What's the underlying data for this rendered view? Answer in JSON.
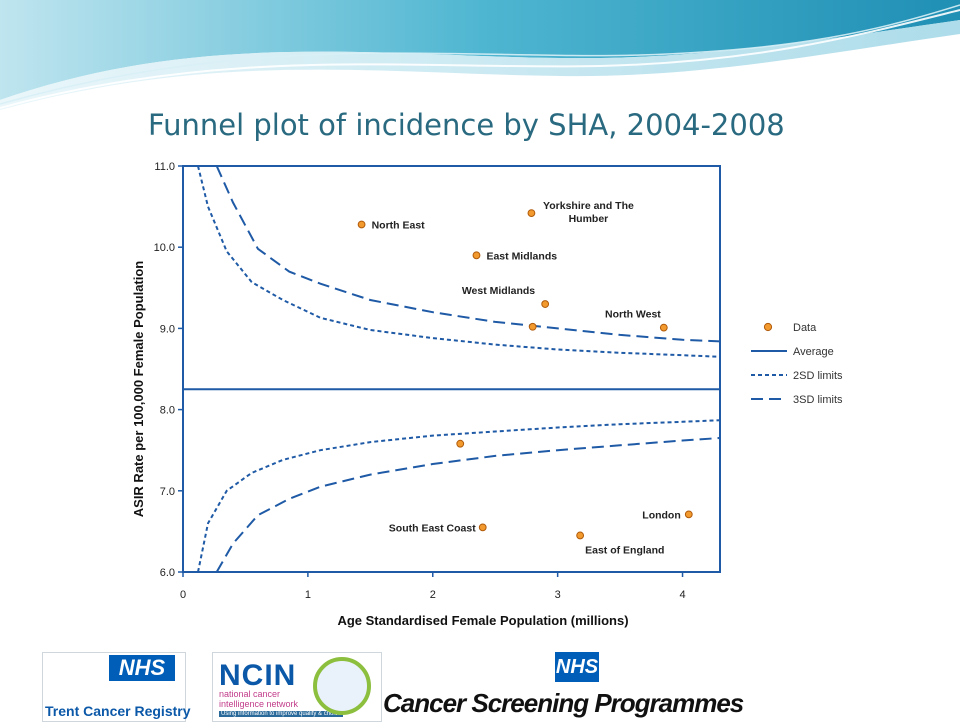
{
  "slide": {
    "title": "Funnel plot of incidence by SHA, 2004-2008"
  },
  "logos": {
    "trent_nhs": "NHS",
    "trent_text": "Trent Cancer Registry",
    "ncin_big": "NCIN",
    "ncin_sub1": "national cancer",
    "ncin_sub2": "intelligence network",
    "ncin_tagline": "Using information to improve quality & choice",
    "csp_nhs": "NHS",
    "csp_text": "Cancer Screening Programmes"
  },
  "colors": {
    "title": "#2a6a80",
    "line": "#1f5aa6",
    "marker_fill": "#f29a2e",
    "marker_edge": "#b05a0a",
    "nhs_blue": "#005eb8"
  },
  "chart_data": {
    "type": "scatter",
    "title": "",
    "xlabel": "Age Standardised Female Population (millions)",
    "ylabel": "ASIR Rate per 100,000 Female Population",
    "xlim": [
      0,
      4.3
    ],
    "ylim": [
      6.0,
      11.0
    ],
    "xticks": [
      "0",
      "1",
      "2",
      "3",
      "4"
    ],
    "yticks": [
      "6.0",
      "7.0",
      "8.0",
      "9.0",
      "10.0",
      "11.0"
    ],
    "grid": false,
    "legend_position": "right",
    "legend": [
      "Data",
      "Average",
      "2SD limits",
      "3SD limits"
    ],
    "average": 8.25,
    "points": [
      {
        "label": "North East",
        "x": 1.43,
        "y": 10.28
      },
      {
        "label": "Yorkshire and The Humber",
        "x": 2.79,
        "y": 10.42
      },
      {
        "label": "East Midlands",
        "x": 2.35,
        "y": 9.9
      },
      {
        "label": "West Midlands",
        "x": 2.9,
        "y": 9.3
      },
      {
        "label": "",
        "x": 2.8,
        "y": 9.02
      },
      {
        "label": "North West",
        "x": 3.85,
        "y": 9.01
      },
      {
        "label": "",
        "x": 2.22,
        "y": 7.58
      },
      {
        "label": "South East Coast",
        "x": 2.4,
        "y": 6.55
      },
      {
        "label": "East of England",
        "x": 3.18,
        "y": 6.45
      },
      {
        "label": "London",
        "x": 4.05,
        "y": 6.71
      }
    ],
    "series": [
      {
        "name": "2SD limits",
        "side": "upper",
        "x": [
          0.12,
          0.2,
          0.35,
          0.55,
          0.8,
          1.1,
          1.5,
          2.0,
          2.5,
          3.0,
          3.5,
          4.0,
          4.3
        ],
        "y": [
          11.0,
          10.5,
          9.95,
          9.57,
          9.35,
          9.13,
          8.98,
          8.88,
          8.8,
          8.74,
          8.7,
          8.67,
          8.65
        ]
      },
      {
        "name": "2SD limits",
        "side": "lower",
        "x": [
          0.12,
          0.2,
          0.35,
          0.55,
          0.8,
          1.1,
          1.5,
          2.0,
          2.5,
          3.0,
          3.5,
          4.0,
          4.3
        ],
        "y": [
          6.0,
          6.6,
          7.0,
          7.22,
          7.38,
          7.5,
          7.6,
          7.68,
          7.73,
          7.78,
          7.82,
          7.85,
          7.87
        ]
      },
      {
        "name": "3SD limits",
        "side": "upper",
        "x": [
          0.27,
          0.4,
          0.6,
          0.85,
          1.1,
          1.5,
          2.0,
          2.5,
          3.0,
          3.5,
          4.0,
          4.3
        ],
        "y": [
          11.0,
          10.55,
          9.98,
          9.7,
          9.55,
          9.35,
          9.2,
          9.08,
          9.0,
          8.92,
          8.86,
          8.84
        ]
      },
      {
        "name": "3SD limits",
        "side": "lower",
        "x": [
          0.27,
          0.4,
          0.6,
          0.85,
          1.1,
          1.5,
          2.0,
          2.5,
          3.0,
          3.5,
          4.0,
          4.3
        ],
        "y": [
          6.0,
          6.35,
          6.7,
          6.9,
          7.05,
          7.2,
          7.33,
          7.43,
          7.5,
          7.56,
          7.62,
          7.65
        ]
      }
    ]
  }
}
